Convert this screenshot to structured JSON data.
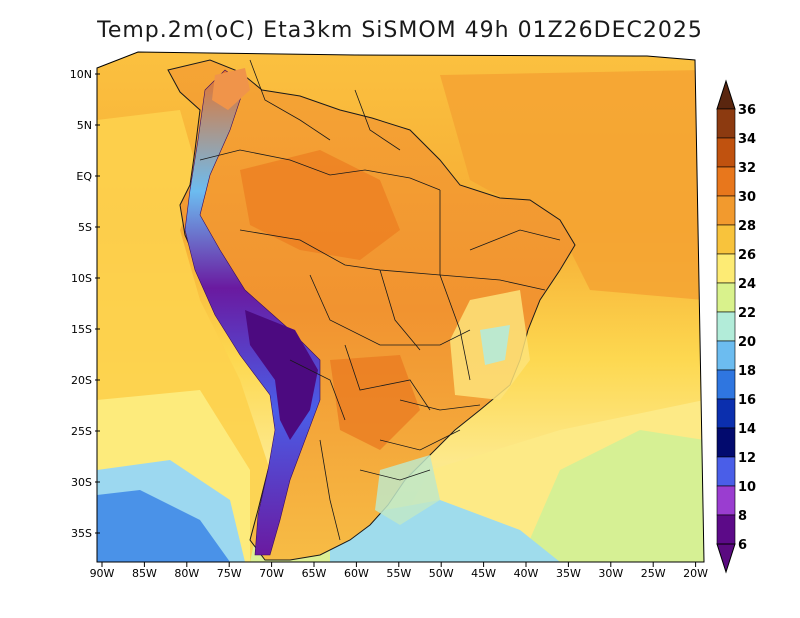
{
  "title": "Temp.2m(oC) Eta3km SiSMOM 49h 01Z26DEC2025",
  "lat_labels": [
    "10N",
    "5N",
    "EQ",
    "5S",
    "10S",
    "15S",
    "20S",
    "25S",
    "30S",
    "35S"
  ],
  "lon_labels": [
    "90W",
    "85W",
    "80W",
    "75W",
    "70W",
    "65W",
    "60W",
    "55W",
    "50W",
    "45W",
    "40W",
    "35W",
    "30W",
    "25W",
    "20W"
  ],
  "colorbar": {
    "unit": "oC",
    "levels": [
      "36",
      "34",
      "32",
      "30",
      "28",
      "26",
      "24",
      "22",
      "20",
      "18",
      "16",
      "14",
      "12",
      "10",
      "8",
      "6"
    ],
    "colors": [
      "#4a1f0c",
      "#8c3a10",
      "#c0520f",
      "#e8771c",
      "#f29a2e",
      "#f8c33c",
      "#fdeb74",
      "#d9f28c",
      "#b2ecd9",
      "#6cbcf0",
      "#2f76e0",
      "#0b2fae",
      "#020a6e",
      "#4a5ee8",
      "#9a3dd0",
      "#5c0a88"
    ],
    "top_color": "#5a260f",
    "bottom_color": "#5a0a80"
  },
  "palette": {
    "ocean_warm": "#f3a532",
    "ocean_mild": "#fcd24c",
    "ocean_cool": "#fde88a",
    "land_hot": "#ee8a24",
    "andes_cold": "#6a1aa0",
    "coast": "#1a1a1a"
  }
}
